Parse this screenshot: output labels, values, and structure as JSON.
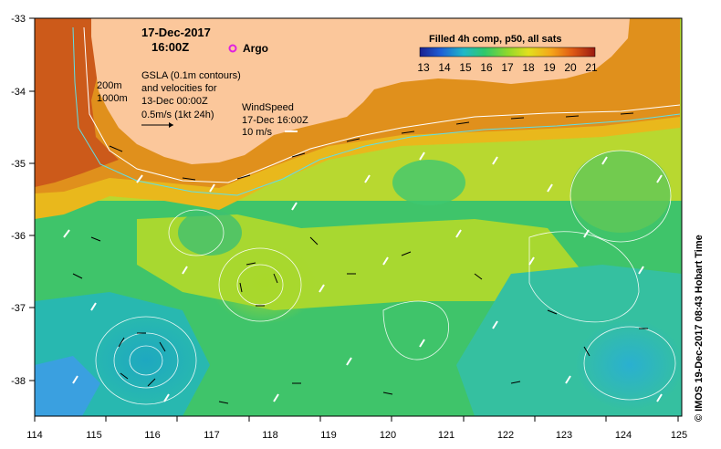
{
  "map": {
    "date": "17-Dec-2017",
    "time": "16:00Z",
    "argo_label": "Argo",
    "gsla_lines": [
      "GSLA (0.1m contours)",
      "and velocities for",
      "13-Dec 00:00Z"
    ],
    "velocity_scale": "0.5m/s (1kt 24h)",
    "wind_lines": [
      "WindSpeed",
      "17-Dec 16:00Z",
      "10 m/s"
    ],
    "depth_labels": [
      "200m",
      "1000m"
    ],
    "colorbar_title": "Filled 4h comp, p50, all sats",
    "colorbar_ticks": [
      "13",
      "14",
      "15",
      "16",
      "17",
      "18",
      "19",
      "20",
      "21"
    ],
    "credit": "© IMOS 19-Dec-2017 08:43 Hobart Time",
    "land_color": "#fbc79b",
    "argo_color": "#e020e0",
    "lon_ticks": [
      "114",
      "115",
      "116",
      "117",
      "118",
      "119",
      "120",
      "121",
      "122",
      "123",
      "124",
      "125"
    ],
    "lat_ticks": [
      "-33",
      "-34",
      "-35",
      "-36",
      "-37",
      "-38"
    ]
  }
}
